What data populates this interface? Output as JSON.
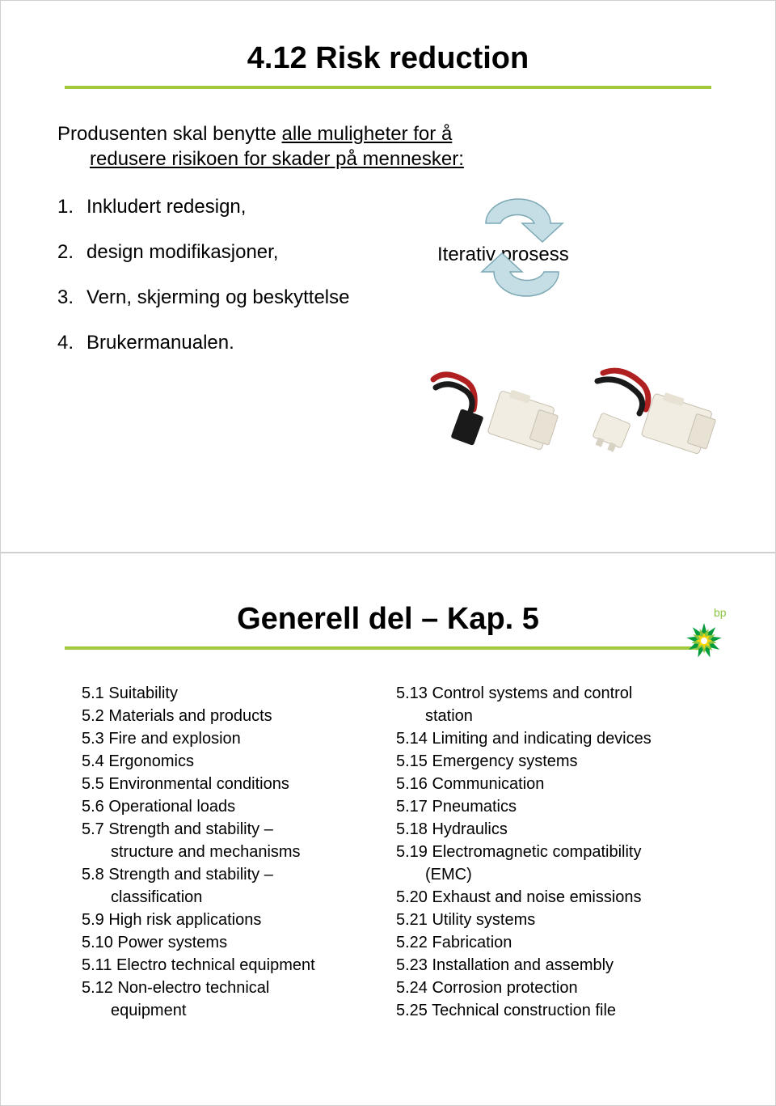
{
  "slide1": {
    "title": "4.12 Risk reduction",
    "intro_pre": "Produsenten skal benytte ",
    "intro_u1": "alle muligheter for å",
    "intro_u2": "redusere risikoen for skader på mennesker:",
    "items": [
      {
        "num": "1.",
        "text": "Inkludert redesign,"
      },
      {
        "num": "2.",
        "text": "design modifikasjoner,"
      },
      {
        "num": "3.",
        "text": "Vern, skjerming og beskyttelse"
      },
      {
        "num": "4.",
        "text": "Brukermanualen."
      }
    ],
    "iterativ_label": "Iterativ prosess",
    "arrow_fill": "#c5dde4",
    "arrow_stroke": "#7ba8b5",
    "rule_color": "#a2c93a"
  },
  "slide2": {
    "title": "Generell del – Kap. 5",
    "bp_label": "bp",
    "bp_green": "#8bc53f",
    "bp_yellow": "#ffd500",
    "left": [
      "5.1 Suitability",
      "5.2 Materials and products",
      "5.3 Fire and explosion",
      "5.4 Ergonomics",
      "5.5 Environmental conditions",
      "5.6 Operational loads",
      "5.7 Strength and stability –",
      "   structure and mechanisms",
      "5.8 Strength and stability –",
      "   classification",
      "5.9 High risk applications",
      "5.10 Power systems",
      "5.11 Electro technical equipment",
      "5.12 Non-electro technical",
      "   equipment"
    ],
    "right": [
      "5.13 Control systems and control",
      "   station",
      "5.14 Limiting and indicating devices",
      "5.15 Emergency systems",
      "5.16 Communication",
      "5.17 Pneumatics",
      "5.18 Hydraulics",
      "5.19 Electromagnetic compatibility",
      "   (EMC)",
      "5.20 Exhaust and noise emissions",
      "5.21 Utility systems",
      "5.22 Fabrication",
      "5.23 Installation and assembly",
      "5.24 Corrosion protection",
      "5.25 Technical construction file"
    ]
  }
}
